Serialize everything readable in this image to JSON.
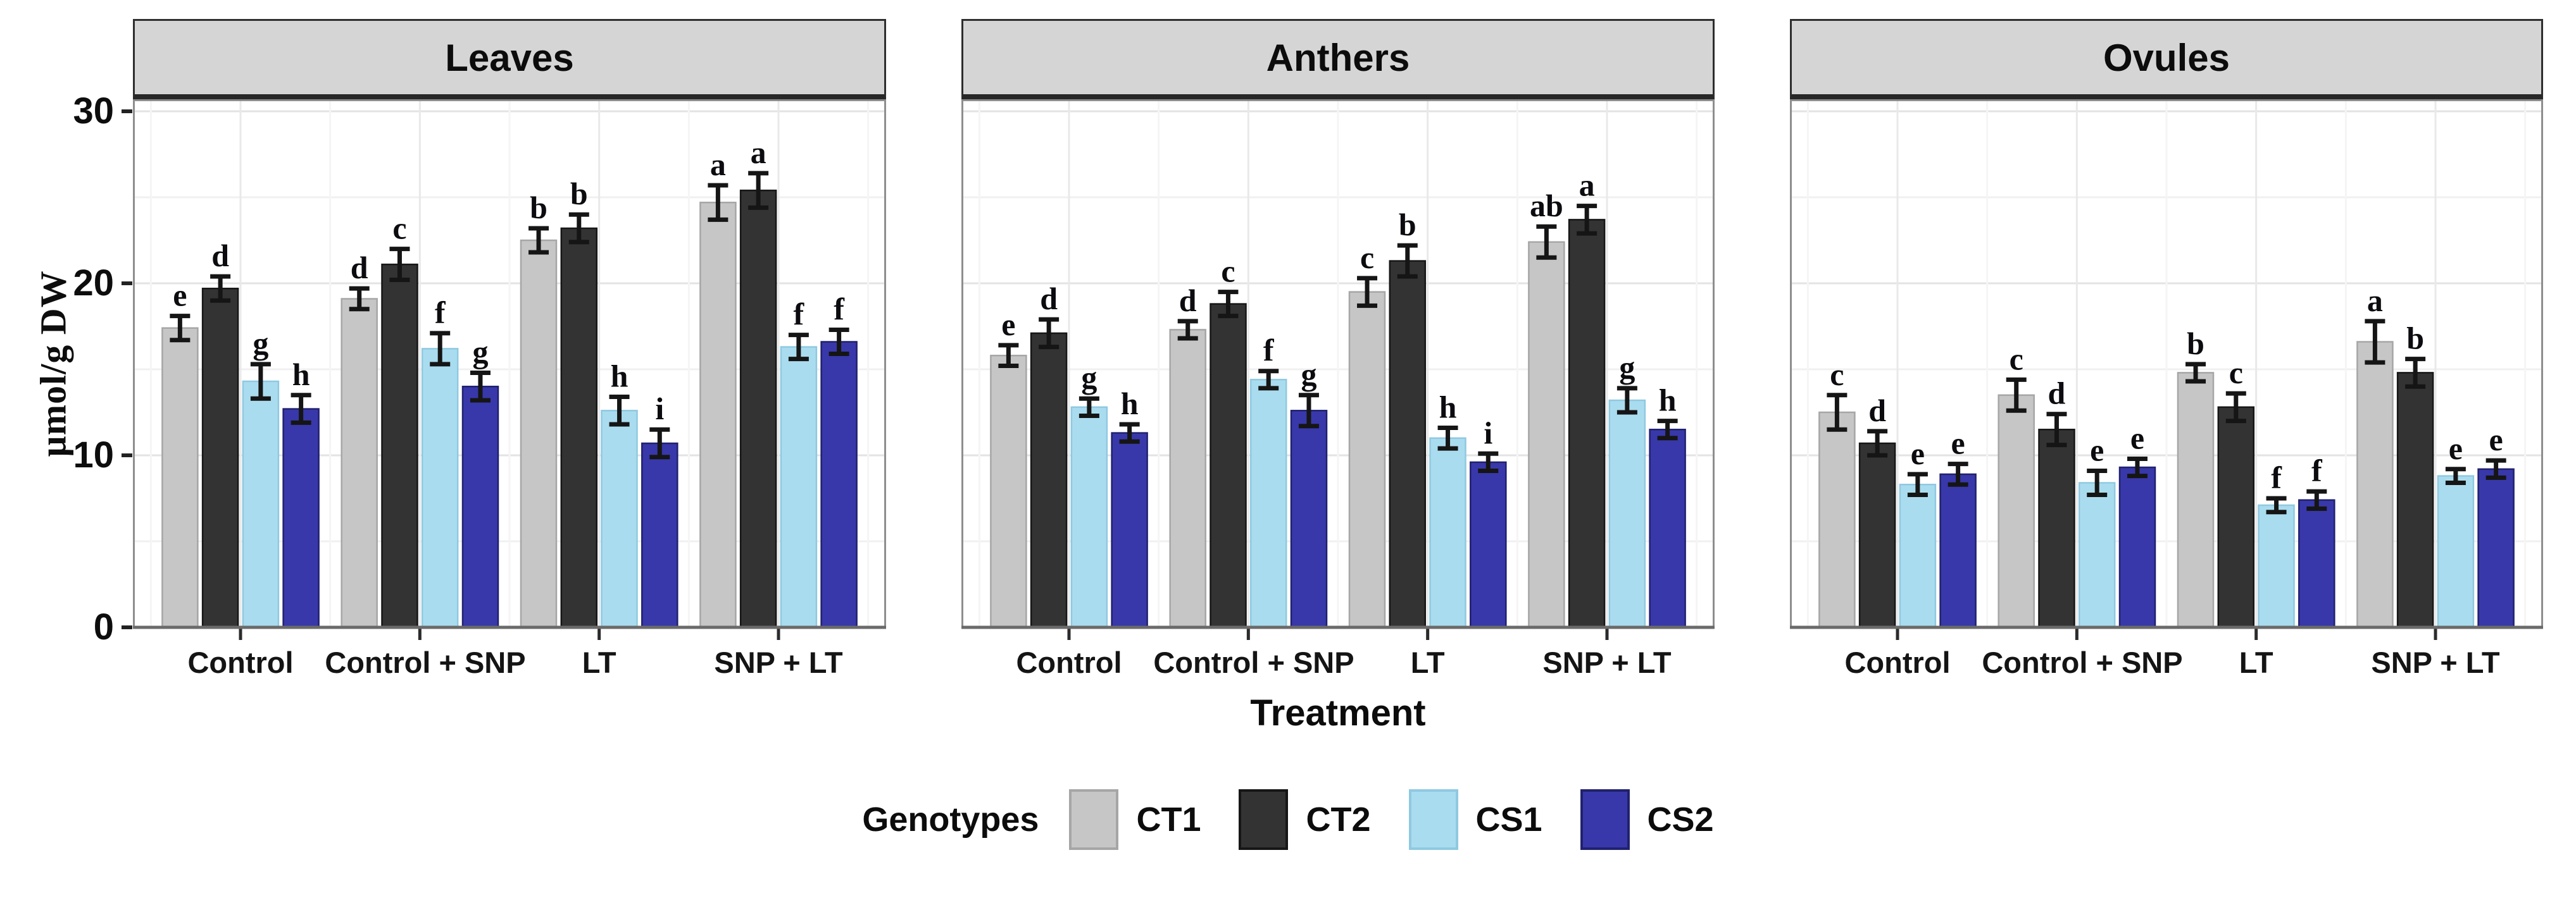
{
  "figure": {
    "y_axis": {
      "title": "µmol/g DW",
      "tick_labels": [
        "0",
        "10",
        "20",
        "30"
      ],
      "tick_values": [
        0,
        10,
        20,
        30
      ]
    },
    "x_axis": {
      "title": "Treatment"
    },
    "legend": {
      "title": "Genotypes"
    }
  },
  "chart_data": {
    "type": "bar",
    "title": "",
    "xlabel": "Treatment",
    "ylabel": "µmol/g DW",
    "ylim": [
      0,
      30.7
    ],
    "grid": {
      "major_h": [
        10,
        20,
        30
      ],
      "minor_h": [
        5,
        15,
        25
      ],
      "vertical_major": "at each treatment center",
      "vertical_minor": "between treatments"
    },
    "legend_position": "bottom",
    "categories": [
      "Control",
      "Control + SNP",
      "LT",
      "SNP + LT"
    ],
    "genotypes": [
      {
        "name": "CT1",
        "color": "#c6c6c6",
        "border": "#a6a6a6"
      },
      {
        "name": "CT2",
        "color": "#333333",
        "border": "#161616"
      },
      {
        "name": "CS1",
        "color": "#aadcef",
        "border": "#8fc9e1"
      },
      {
        "name": "CS2",
        "color": "#3838aa",
        "border": "#20216e"
      }
    ],
    "facets": [
      {
        "title": "Leaves",
        "series": [
          {
            "name": "CT1",
            "values": [
              17.4,
              19.1,
              22.5,
              24.7
            ],
            "errors": [
              0.7,
              0.6,
              0.7,
              1.0
            ],
            "letters": [
              "e",
              "d",
              "b",
              "a"
            ]
          },
          {
            "name": "CT2",
            "values": [
              19.7,
              21.1,
              23.2,
              25.4
            ],
            "errors": [
              0.7,
              0.9,
              0.8,
              1.0
            ],
            "letters": [
              "d",
              "c",
              "b",
              "a"
            ]
          },
          {
            "name": "CS1",
            "values": [
              14.3,
              16.2,
              12.6,
              16.3
            ],
            "errors": [
              1.0,
              0.9,
              0.8,
              0.7
            ],
            "letters": [
              "g",
              "f",
              "h",
              "f"
            ]
          },
          {
            "name": "CS2",
            "values": [
              12.7,
              14.0,
              10.7,
              16.6
            ],
            "errors": [
              0.8,
              0.8,
              0.8,
              0.7
            ],
            "letters": [
              "h",
              "g",
              "i",
              "f"
            ]
          }
        ]
      },
      {
        "title": "Anthers",
        "series": [
          {
            "name": "CT1",
            "values": [
              15.8,
              17.3,
              19.5,
              22.4
            ],
            "errors": [
              0.6,
              0.5,
              0.8,
              0.9
            ],
            "letters": [
              "e",
              "d",
              "c",
              "ab"
            ]
          },
          {
            "name": "CT2",
            "values": [
              17.1,
              18.8,
              21.3,
              23.7
            ],
            "errors": [
              0.8,
              0.7,
              0.9,
              0.8
            ],
            "letters": [
              "d",
              "c",
              "b",
              "a"
            ]
          },
          {
            "name": "CS1",
            "values": [
              12.8,
              14.4,
              11.0,
              13.2
            ],
            "errors": [
              0.5,
              0.5,
              0.6,
              0.7
            ],
            "letters": [
              "g",
              "f",
              "h",
              "g"
            ]
          },
          {
            "name": "CS2",
            "values": [
              11.3,
              12.6,
              9.6,
              11.5
            ],
            "errors": [
              0.5,
              0.9,
              0.5,
              0.5
            ],
            "letters": [
              "h",
              "g",
              "i",
              "h"
            ]
          }
        ]
      },
      {
        "title": "Ovules",
        "series": [
          {
            "name": "CT1",
            "values": [
              12.5,
              13.5,
              14.8,
              16.6
            ],
            "errors": [
              1.0,
              0.9,
              0.5,
              1.2
            ],
            "letters": [
              "c",
              "c",
              "b",
              "a"
            ]
          },
          {
            "name": "CT2",
            "values": [
              10.7,
              11.5,
              12.8,
              14.8
            ],
            "errors": [
              0.7,
              0.9,
              0.8,
              0.8
            ],
            "letters": [
              "d",
              "d",
              "c",
              "b"
            ]
          },
          {
            "name": "CS1",
            "values": [
              8.3,
              8.4,
              7.1,
              8.8
            ],
            "errors": [
              0.6,
              0.7,
              0.4,
              0.4
            ],
            "letters": [
              "e",
              "e",
              "f",
              "e"
            ]
          },
          {
            "name": "CS2",
            "values": [
              8.9,
              9.3,
              7.4,
              9.2
            ],
            "errors": [
              0.6,
              0.5,
              0.5,
              0.5
            ],
            "letters": [
              "e",
              "e",
              "f",
              "e"
            ]
          }
        ]
      }
    ]
  }
}
